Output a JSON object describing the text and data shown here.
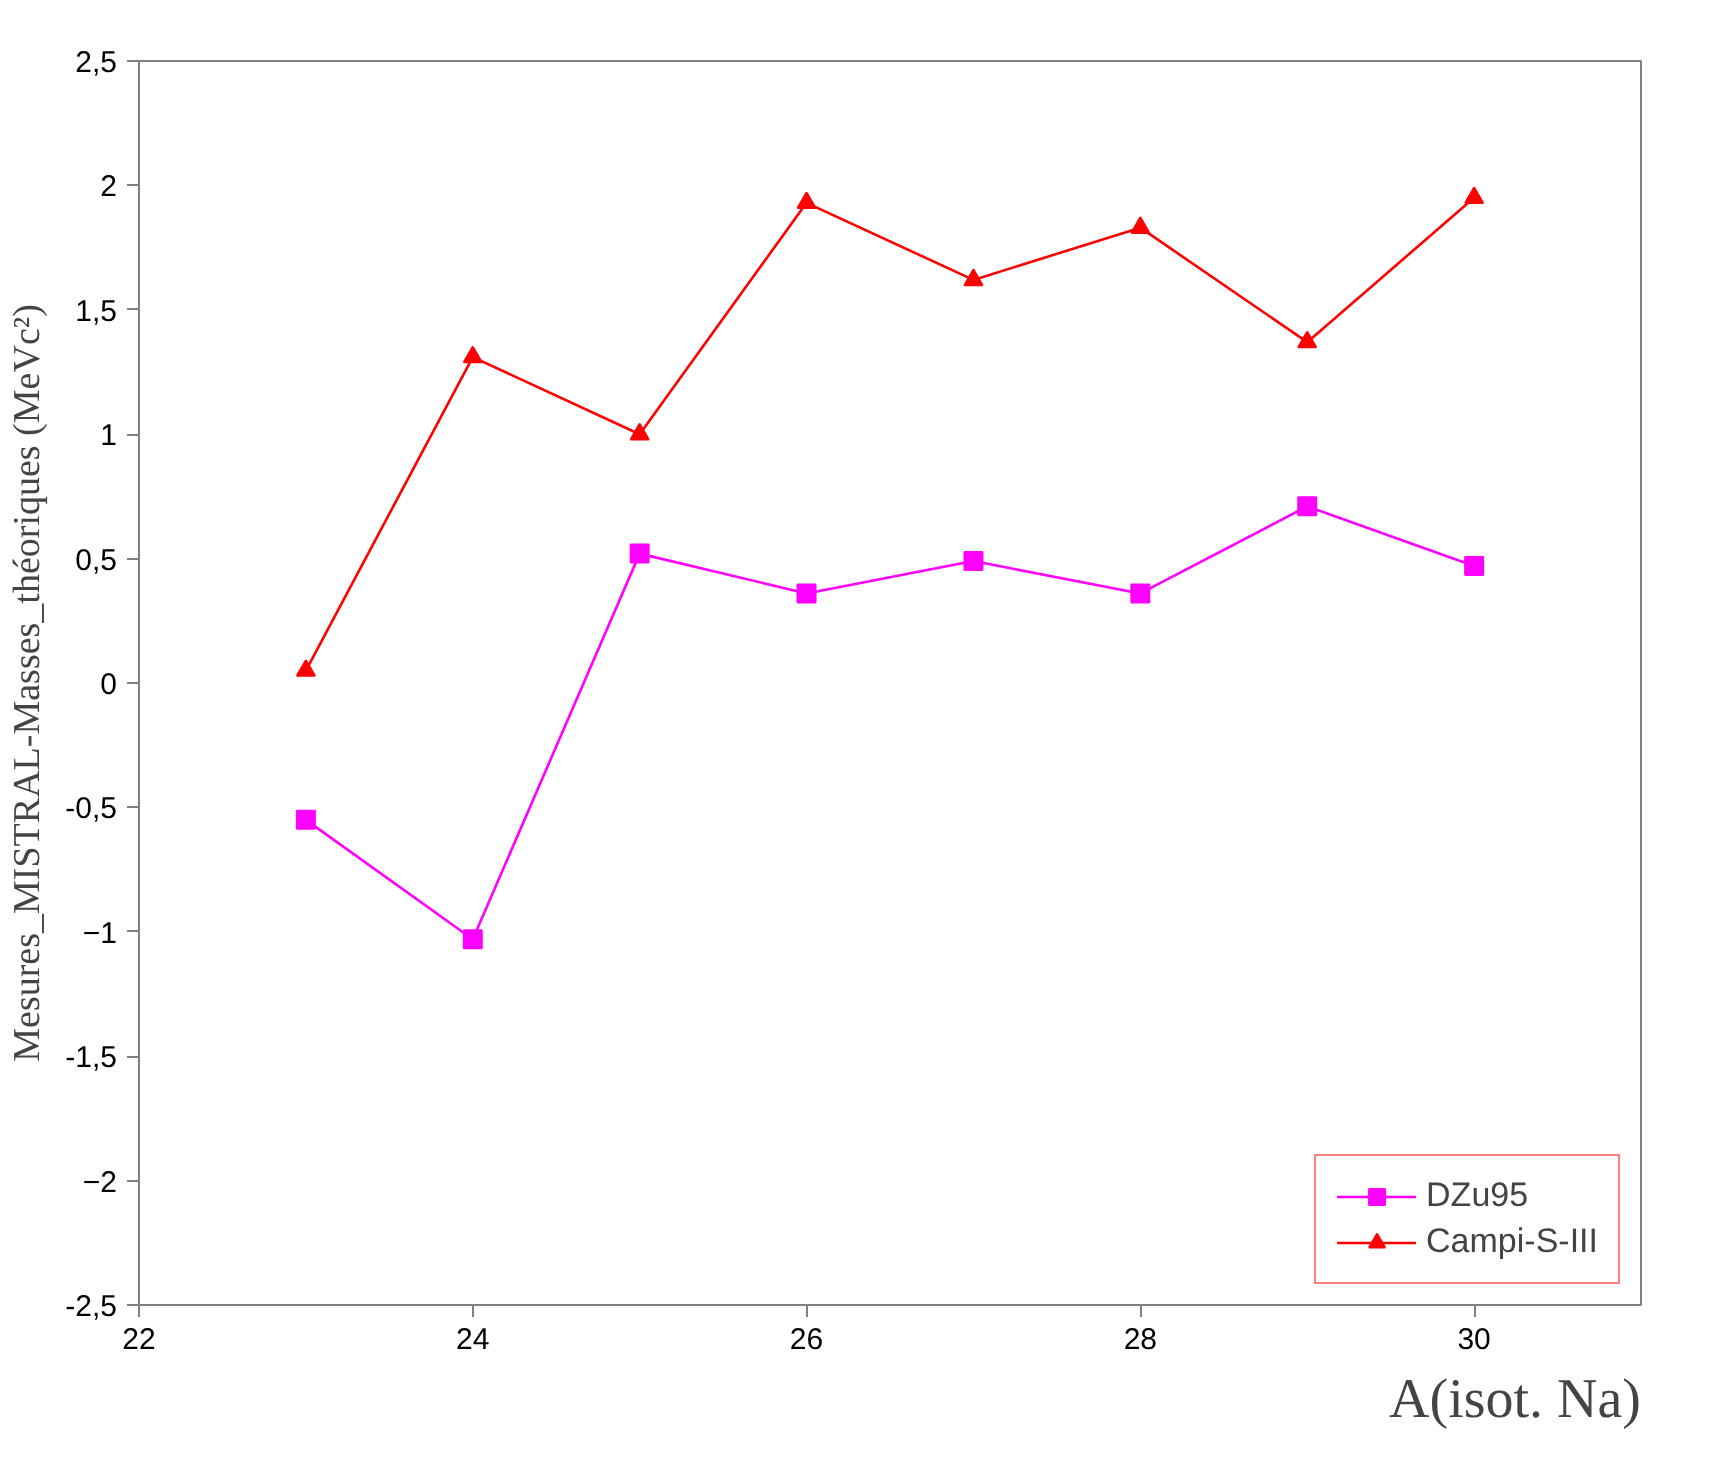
{
  "chart_data": {
    "type": "line",
    "xlabel": "A(isot. Na)",
    "ylabel": "Mesures_MISTRAL-Masses_théoriques (MeVc²)",
    "x": [
      23,
      24,
      25,
      26,
      27,
      28,
      29,
      30
    ],
    "series": [
      {
        "name": "DZu95",
        "color": "#ff00ff",
        "marker": "square",
        "values": [
          -0.55,
          -1.03,
          0.52,
          0.36,
          0.49,
          0.36,
          0.71,
          0.47
        ]
      },
      {
        "name": "Campi-S-III",
        "color": "#ff0000",
        "marker": "triangle",
        "values": [
          0.05,
          1.31,
          1.0,
          1.93,
          1.62,
          1.83,
          1.37,
          1.95
        ]
      }
    ],
    "xlim": [
      22,
      31
    ],
    "xticks": [
      22,
      24,
      26,
      28,
      30
    ],
    "ylim": [
      -2.5,
      2.5
    ],
    "yticks": [
      {
        "value": -2.5,
        "label": "-2,5"
      },
      -2,
      {
        "value": -1.5,
        "label": "-1,5"
      },
      -1,
      {
        "value": -0.5,
        "label": "-0,5"
      },
      0,
      {
        "value": 0.5,
        "label": "0,5"
      },
      1,
      {
        "value": 1.5,
        "label": "1,5"
      },
      2,
      {
        "value": 2.5,
        "label": "2,5"
      }
    ],
    "grid": false,
    "legend": "bottom right",
    "line_style": "solid"
  }
}
